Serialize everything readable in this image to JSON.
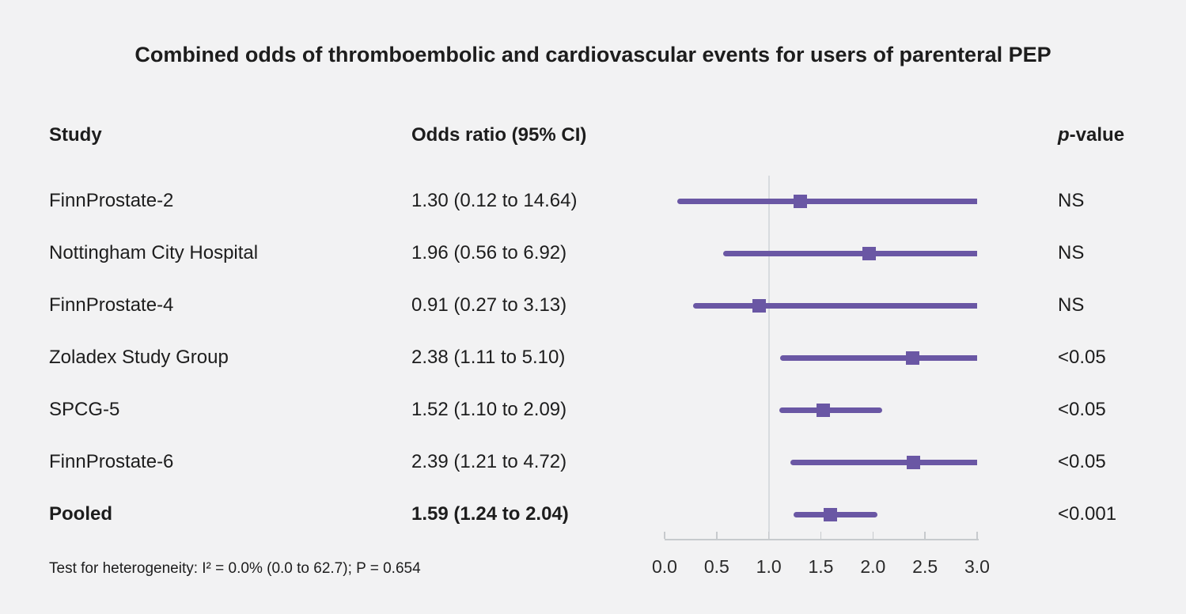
{
  "title": "Combined odds of thromboembolic and cardiovascular events for users of parenteral PEP",
  "columns": {
    "study": "Study",
    "odds_ratio": "Odds ratio (95% CI)",
    "p_italic": "p",
    "p_rest": "-value"
  },
  "footnote": "Test for heterogeneity: I² = 0.0% (0.0 to 62.7); P = 0.654",
  "colors": {
    "background": "#f2f2f3",
    "text": "#1d1d1d",
    "marker_purple": "#6a57a4",
    "reference_line": "#d8dbdf",
    "axis": "#c7cacd"
  },
  "chart_data": {
    "type": "forest",
    "title": "Combined odds of thromboembolic and cardiovascular events for users of parenteral PEP",
    "x_axis": {
      "ticks": [
        0.0,
        0.5,
        1.0,
        1.5,
        2.0,
        2.5,
        3.0
      ],
      "tick_labels": [
        "0.0",
        "0.5",
        "1.0",
        "1.5",
        "2.0",
        "2.5",
        "3.0"
      ],
      "xlim": [
        0,
        3
      ],
      "reference_value": 1.0
    },
    "rows": [
      {
        "study": "FinnProstate-2",
        "or": 1.3,
        "ci_low": 0.12,
        "ci_high": 14.64,
        "or_text": "1.30 (0.12 to 14.64)",
        "p_value": "NS",
        "bold": false
      },
      {
        "study": "Nottingham City Hospital",
        "or": 1.96,
        "ci_low": 0.56,
        "ci_high": 6.92,
        "or_text": "1.96 (0.56 to 6.92)",
        "p_value": "NS",
        "bold": false
      },
      {
        "study": "FinnProstate-4",
        "or": 0.91,
        "ci_low": 0.27,
        "ci_high": 3.13,
        "or_text": "0.91 (0.27 to 3.13)",
        "p_value": "NS",
        "bold": false
      },
      {
        "study": "Zoladex Study Group",
        "or": 2.38,
        "ci_low": 1.11,
        "ci_high": 5.1,
        "or_text": "2.38 (1.11 to 5.10)",
        "p_value": "<0.05",
        "bold": false
      },
      {
        "study": "SPCG-5",
        "or": 1.52,
        "ci_low": 1.1,
        "ci_high": 2.09,
        "or_text": "1.52 (1.10 to 2.09)",
        "p_value": "<0.05",
        "bold": false
      },
      {
        "study": "FinnProstate-6",
        "or": 2.39,
        "ci_low": 1.21,
        "ci_high": 4.72,
        "or_text": "2.39 (1.21 to 4.72)",
        "p_value": "<0.05",
        "bold": false
      },
      {
        "study": "Pooled",
        "or": 1.59,
        "ci_low": 1.24,
        "ci_high": 2.04,
        "or_text": "1.59 (1.24 to 2.04)",
        "p_value": "<0.001",
        "bold": true
      }
    ]
  }
}
